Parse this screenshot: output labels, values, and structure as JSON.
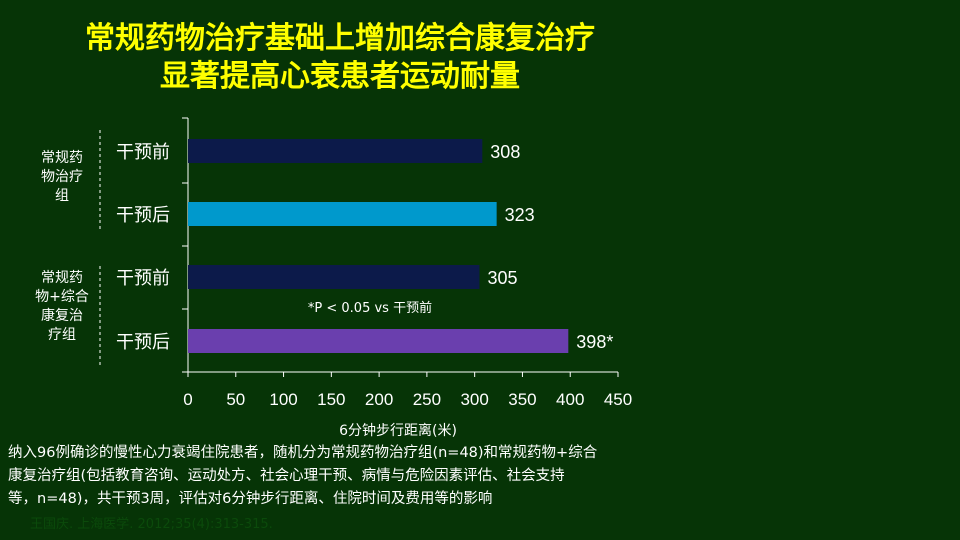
{
  "title_line1": "常规药物治疗基础上增加综合康复治疗",
  "title_line2": "显著提高心衰患者运动耐量",
  "chart_data": {
    "type": "bar",
    "orientation": "horizontal",
    "groups": [
      {
        "label": [
          "常规药",
          "物治疗",
          "组"
        ],
        "categories": [
          "干预前",
          "干预后"
        ]
      },
      {
        "label": [
          "常规药",
          "物+综合",
          "康复治",
          "疗组"
        ],
        "categories": [
          "干预前",
          "干预后"
        ]
      }
    ],
    "bars": [
      {
        "category": "干预前",
        "value": 308,
        "label": "308",
        "color": "#0c1a4a"
      },
      {
        "category": "干预后",
        "value": 323,
        "label": "323",
        "color": "#0099cc"
      },
      {
        "category": "干预前",
        "value": 305,
        "label": "305",
        "color": "#0c1a4a"
      },
      {
        "category": "干预后",
        "value": 398,
        "label": "398*",
        "color": "#6a3fae"
      }
    ],
    "annotation": "*P < 0.05 vs  干预前",
    "xlabel": "6分钟步行距离(米)",
    "xlim": [
      0,
      450
    ],
    "xticks": [
      "0",
      "50",
      "100",
      "150",
      "200",
      "250",
      "300",
      "350",
      "400",
      "450"
    ],
    "grid": false
  },
  "note_lines": [
    "纳入96例确诊的慢性心力衰竭住院患者，随机分为常规药物治疗组(n=48)和常规药物+综合",
    "康复治疗组(包括教育咨询、运动处方、社会心理干预、病情与危险因素评估、社会支持",
    "等，n=48)，共干预3周，评估对6分钟步行距离、住院时间及费用等的影响"
  ],
  "citation": "王国庆. 上海医学. 2012;35(4):313-315.",
  "colors": {
    "background": "#063406",
    "title": "#ffff00",
    "text": "#ffffff"
  }
}
